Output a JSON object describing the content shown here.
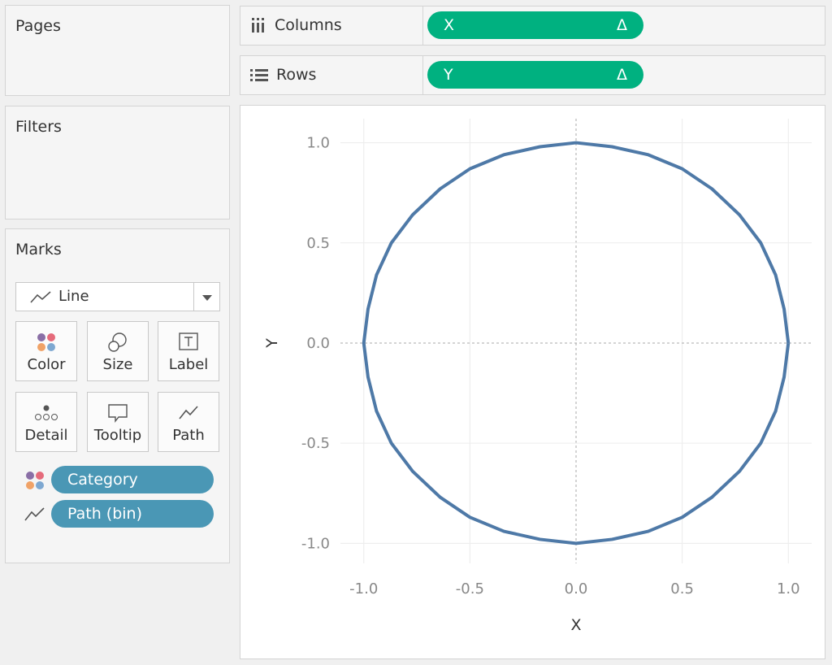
{
  "pages": {
    "title": "Pages"
  },
  "filters": {
    "title": "Filters"
  },
  "columns": {
    "label": "Columns",
    "pill": "X",
    "pill_icon": "Δ"
  },
  "rows": {
    "label": "Rows",
    "pill": "Y",
    "pill_icon": "Δ"
  },
  "marks": {
    "title": "Marks",
    "mark_type": "Line",
    "buttons": [
      "Color",
      "Size",
      "Label",
      "Detail",
      "Tooltip",
      "Path"
    ],
    "pills": [
      "Category",
      "Path (bin)"
    ]
  },
  "chart_data": {
    "type": "line",
    "x_label": "X",
    "y_label": "Y",
    "x": [
      1,
      0.98,
      0.94,
      0.87,
      0.77,
      0.64,
      0.5,
      0.34,
      0.17,
      0,
      -0.17,
      -0.34,
      -0.5,
      -0.64,
      -0.77,
      -0.87,
      -0.94,
      -0.98,
      -1,
      -0.98,
      -0.94,
      -0.87,
      -0.77,
      -0.64,
      -0.5,
      -0.34,
      -0.17,
      0,
      0.17,
      0.34,
      0.5,
      0.64,
      0.77,
      0.87,
      0.94,
      0.98,
      1
    ],
    "series": [
      {
        "color": "#4e79a7",
        "values": [
          0,
          0.17,
          0.34,
          0.5,
          0.64,
          0.77,
          0.87,
          0.94,
          0.98,
          1,
          0.98,
          0.94,
          0.87,
          0.77,
          0.64,
          0.5,
          0.34,
          0.17,
          0,
          -0.17,
          -0.34,
          -0.5,
          -0.64,
          -0.77,
          -0.87,
          -0.94,
          -0.98,
          -1,
          -0.98,
          -0.94,
          -0.87,
          -0.77,
          -0.64,
          -0.5,
          -0.34,
          -0.17,
          0
        ]
      }
    ],
    "xlim": [
      -1.11,
      1.11
    ],
    "ylim": [
      -1.1,
      1.12
    ],
    "xticks": [
      {
        "value": -1,
        "label": "-1.0"
      },
      -0.5,
      {
        "value": 0,
        "label": "0.0"
      },
      0.5,
      {
        "value": 1,
        "label": "1.0"
      }
    ],
    "yticks": [
      {
        "value": -1,
        "label": "-1.0"
      },
      -0.5,
      {
        "value": 0,
        "label": "0.0"
      },
      0.5,
      {
        "value": 1,
        "label": "1.0"
      }
    ],
    "grid": true
  }
}
